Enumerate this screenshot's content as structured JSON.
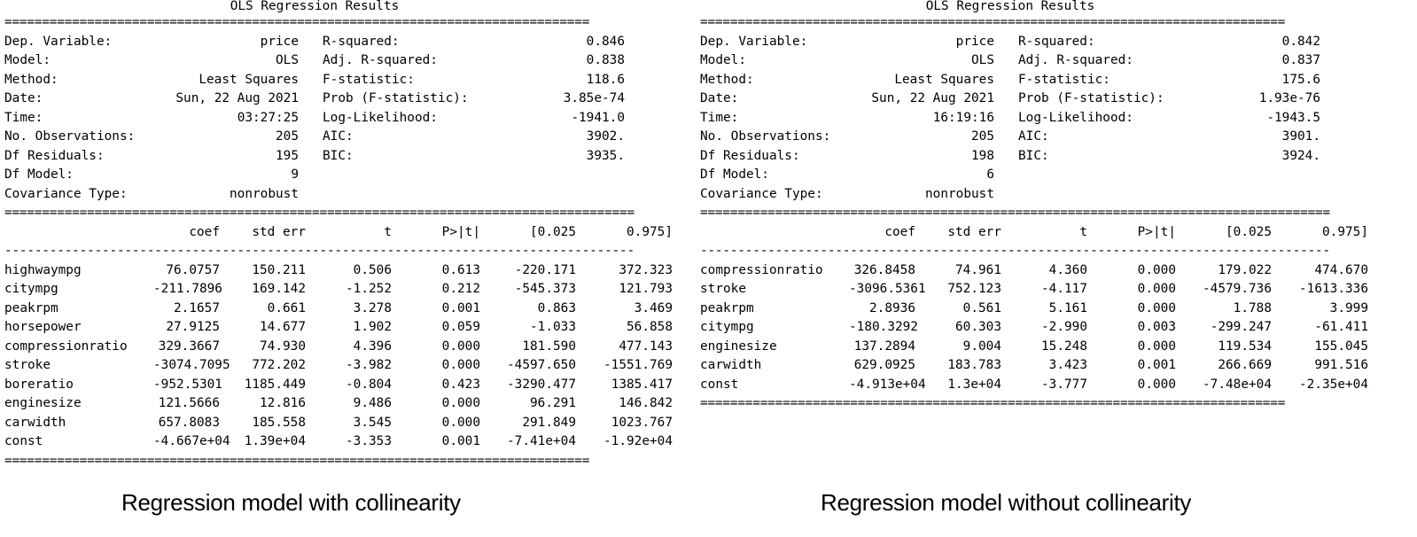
{
  "left": {
    "title": "OLS Regression Results",
    "rule_eq": "==============================================================================",
    "rule_eq_wide": "====================================================================================",
    "rule_dash": "------------------------------------------------------------------------------------",
    "info": [
      {
        "label": "Dep. Variable:",
        "value": "price",
        "label2": "R-squared:",
        "value2": "0.846"
      },
      {
        "label": "Model:",
        "value": "OLS",
        "label2": "Adj. R-squared:",
        "value2": "0.838"
      },
      {
        "label": "Method:",
        "value": "Least Squares",
        "label2": "F-statistic:",
        "value2": "118.6"
      },
      {
        "label": "Date:",
        "value": "Sun, 22 Aug 2021",
        "label2": "Prob (F-statistic):",
        "value2": "3.85e-74"
      },
      {
        "label": "Time:",
        "value": "03:27:25",
        "label2": "Log-Likelihood:",
        "value2": "-1941.0"
      },
      {
        "label": "No. Observations:",
        "value": "205",
        "label2": "AIC:",
        "value2": "3902."
      },
      {
        "label": "Df Residuals:",
        "value": "195",
        "label2": "BIC:",
        "value2": "3935."
      },
      {
        "label": "Df Model:",
        "value": "9",
        "label2": "",
        "value2": ""
      },
      {
        "label": "Covariance Type:",
        "value": "nonrobust",
        "label2": "",
        "value2": ""
      }
    ],
    "columns": [
      "",
      "coef",
      "std err",
      "t",
      "P>|t|",
      "[0.025",
      "0.975]"
    ],
    "rows": [
      {
        "name": "highwaympg",
        "coef": "76.0757",
        "se": "150.211",
        "t": "0.506",
        "p": "0.613",
        "lo": "-220.171",
        "hi": "372.323"
      },
      {
        "name": "citympg",
        "coef": "-211.7896",
        "se": "169.142",
        "t": "-1.252",
        "p": "0.212",
        "lo": "-545.373",
        "hi": "121.793"
      },
      {
        "name": "peakrpm",
        "coef": "2.1657",
        "se": "0.661",
        "t": "3.278",
        "p": "0.001",
        "lo": "0.863",
        "hi": "3.469"
      },
      {
        "name": "horsepower",
        "coef": "27.9125",
        "se": "14.677",
        "t": "1.902",
        "p": "0.059",
        "lo": "-1.033",
        "hi": "56.858"
      },
      {
        "name": "compressionratio",
        "coef": "329.3667",
        "se": "74.930",
        "t": "4.396",
        "p": "0.000",
        "lo": "181.590",
        "hi": "477.143"
      },
      {
        "name": "stroke",
        "coef": "-3074.7095",
        "se": "772.202",
        "t": "-3.982",
        "p": "0.000",
        "lo": "-4597.650",
        "hi": "-1551.769"
      },
      {
        "name": "boreratio",
        "coef": "-952.5301",
        "se": "1185.449",
        "t": "-0.804",
        "p": "0.423",
        "lo": "-3290.477",
        "hi": "1385.417"
      },
      {
        "name": "enginesize",
        "coef": "121.5666",
        "se": "12.816",
        "t": "9.486",
        "p": "0.000",
        "lo": "96.291",
        "hi": "146.842"
      },
      {
        "name": "carwidth",
        "coef": "657.8083",
        "se": "185.558",
        "t": "3.545",
        "p": "0.000",
        "lo": "291.849",
        "hi": "1023.767"
      },
      {
        "name": "const",
        "coef": "-4.667e+04",
        "se": "1.39e+04",
        "t": "-3.353",
        "p": "0.001",
        "lo": "-7.41e+04",
        "hi": "-1.92e+04"
      }
    ],
    "caption": "Regression model with collinearity"
  },
  "right": {
    "title": "OLS Regression Results",
    "rule_eq": "==============================================================================",
    "rule_eq_wide": "====================================================================================",
    "rule_dash": "------------------------------------------------------------------------------------",
    "info": [
      {
        "label": "Dep. Variable:",
        "value": "price",
        "label2": "R-squared:",
        "value2": "0.842"
      },
      {
        "label": "Model:",
        "value": "OLS",
        "label2": "Adj. R-squared:",
        "value2": "0.837"
      },
      {
        "label": "Method:",
        "value": "Least Squares",
        "label2": "F-statistic:",
        "value2": "175.6"
      },
      {
        "label": "Date:",
        "value": "Sun, 22 Aug 2021",
        "label2": "Prob (F-statistic):",
        "value2": "1.93e-76"
      },
      {
        "label": "Time:",
        "value": "16:19:16",
        "label2": "Log-Likelihood:",
        "value2": "-1943.5"
      },
      {
        "label": "No. Observations:",
        "value": "205",
        "label2": "AIC:",
        "value2": "3901."
      },
      {
        "label": "Df Residuals:",
        "value": "198",
        "label2": "BIC:",
        "value2": "3924."
      },
      {
        "label": "Df Model:",
        "value": "6",
        "label2": "",
        "value2": ""
      },
      {
        "label": "Covariance Type:",
        "value": "nonrobust",
        "label2": "",
        "value2": ""
      }
    ],
    "columns": [
      "",
      "coef",
      "std err",
      "t",
      "P>|t|",
      "[0.025",
      "0.975]"
    ],
    "rows": [
      {
        "name": "compressionratio",
        "coef": "326.8458",
        "se": "74.961",
        "t": "4.360",
        "p": "0.000",
        "lo": "179.022",
        "hi": "474.670"
      },
      {
        "name": "stroke",
        "coef": "-3096.5361",
        "se": "752.123",
        "t": "-4.117",
        "p": "0.000",
        "lo": "-4579.736",
        "hi": "-1613.336"
      },
      {
        "name": "peakrpm",
        "coef": "2.8936",
        "se": "0.561",
        "t": "5.161",
        "p": "0.000",
        "lo": "1.788",
        "hi": "3.999"
      },
      {
        "name": "citympg",
        "coef": "-180.3292",
        "se": "60.303",
        "t": "-2.990",
        "p": "0.003",
        "lo": "-299.247",
        "hi": "-61.411"
      },
      {
        "name": "enginesize",
        "coef": "137.2894",
        "se": "9.004",
        "t": "15.248",
        "p": "0.000",
        "lo": "119.534",
        "hi": "155.045"
      },
      {
        "name": "carwidth",
        "coef": "629.0925",
        "se": "183.783",
        "t": "3.423",
        "p": "0.001",
        "lo": "266.669",
        "hi": "991.516"
      },
      {
        "name": "const",
        "coef": "-4.913e+04",
        "se": "1.3e+04",
        "t": "-3.777",
        "p": "0.000",
        "lo": "-7.48e+04",
        "hi": "-2.35e+04"
      }
    ],
    "caption": "Regression model without collinearity"
  }
}
